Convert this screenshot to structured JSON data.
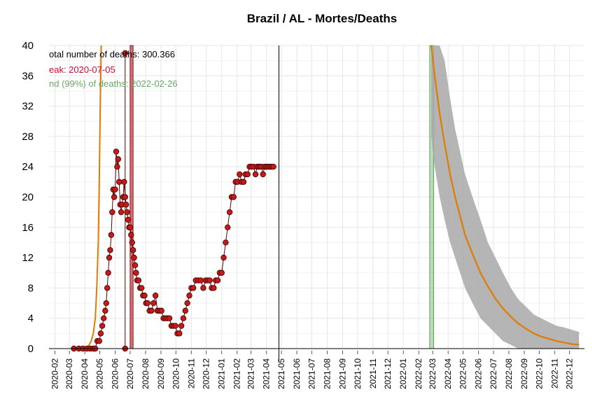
{
  "chart_data": {
    "type": "line",
    "title": "Brazil / AL - Mortes/Deaths",
    "xlabel": "",
    "ylabel": "",
    "ylim": [
      0,
      40
    ],
    "y_ticks": [
      0,
      4,
      8,
      12,
      16,
      20,
      24,
      28,
      32,
      36,
      40
    ],
    "x_range": [
      "2020-01-20",
      "2022-12-31"
    ],
    "x_tick_labels": [
      "2020-02",
      "2020-03",
      "2020-04",
      "2020-05",
      "2020-06",
      "2020-07",
      "2020-08",
      "2020-09",
      "2020-10",
      "2020-11",
      "2020-12",
      "2021-01",
      "2021-02",
      "2021-03",
      "2021-04",
      "2021-05",
      "2021-06",
      "2021-07",
      "2021-08",
      "2021-09",
      "2021-10",
      "2021-11",
      "2021-12",
      "2022-01",
      "2022-02",
      "2022-03",
      "2022-04",
      "2022-05",
      "2022-06",
      "2022-07",
      "2022-08",
      "2022-09",
      "2022-10",
      "2022-11",
      "2022-12"
    ],
    "grid": true,
    "annotations": {
      "total": "otal number of deaths: 300.366",
      "peak": "eak: 2020-07-05",
      "end": "nd (99%) of deaths: 2022-02-26"
    },
    "vertical_line_date": "2021-04-26",
    "peak_band": [
      "2020-07-01",
      "2020-07-07"
    ],
    "end_band": [
      "2022-02-23",
      "2022-03-03"
    ],
    "series": [
      {
        "kind": "observed",
        "dates": [
          "2020-03-10",
          "2020-03-20",
          "2020-03-28",
          "2020-04-05",
          "2020-04-12",
          "2020-04-18",
          "2020-04-22",
          "2020-04-26",
          "2020-04-30",
          "2020-05-03",
          "2020-05-06",
          "2020-05-09",
          "2020-05-12",
          "2020-05-14",
          "2020-05-16",
          "2020-05-18",
          "2020-05-20",
          "2020-05-22",
          "2020-05-24",
          "2020-05-26",
          "2020-05-28",
          "2020-05-30",
          "2020-06-01",
          "2020-06-03",
          "2020-06-05",
          "2020-06-07",
          "2020-06-09",
          "2020-06-11",
          "2020-06-13",
          "2020-06-15",
          "2020-06-17",
          "2020-06-19",
          "2020-06-21",
          "2020-06-23",
          "2020-06-25",
          "2020-06-27",
          "2020-06-29",
          "2020-07-01",
          "2020-07-03",
          "2020-07-05",
          "2020-07-07",
          "2020-07-09",
          "2020-07-11",
          "2020-07-13",
          "2020-07-15",
          "2020-07-18",
          "2020-07-21",
          "2020-07-24",
          "2020-07-27",
          "2020-07-30",
          "2020-08-02",
          "2020-08-05",
          "2020-08-09",
          "2020-08-13",
          "2020-08-17",
          "2020-08-21",
          "2020-08-25",
          "2020-08-29",
          "2020-09-02",
          "2020-09-06",
          "2020-09-10",
          "2020-09-14",
          "2020-09-18",
          "2020-09-22",
          "2020-09-26",
          "2020-09-30",
          "2020-10-04",
          "2020-10-08",
          "2020-10-12",
          "2020-10-16",
          "2020-10-20",
          "2020-10-24",
          "2020-10-28",
          "2020-11-01",
          "2020-11-05",
          "2020-11-10",
          "2020-11-15",
          "2020-11-20",
          "2020-11-25",
          "2020-11-30",
          "2020-12-04",
          "2020-12-08",
          "2020-12-12",
          "2020-12-16",
          "2020-12-20",
          "2020-12-24",
          "2020-12-28",
          "2021-01-01",
          "2021-01-05",
          "2021-01-09",
          "2021-01-13",
          "2021-01-17",
          "2021-01-21",
          "2021-01-25",
          "2021-01-29",
          "2021-02-02",
          "2021-02-06",
          "2021-02-10",
          "2021-02-14",
          "2021-02-18",
          "2021-02-22",
          "2021-02-26",
          "2021-03-02",
          "2021-03-06",
          "2021-03-10",
          "2021-03-13",
          "2021-03-16",
          "2021-03-19",
          "2021-03-22",
          "2021-03-25",
          "2021-03-28",
          "2021-03-31",
          "2021-04-03",
          "2021-04-06",
          "2021-04-09",
          "2021-04-12",
          "2021-04-15"
        ],
        "values": [
          0,
          0,
          0,
          0,
          0,
          0,
          0,
          1,
          1,
          2,
          3,
          4,
          5,
          6,
          8,
          10,
          12,
          13,
          15,
          18,
          21,
          20,
          21,
          26,
          24,
          25,
          22,
          19,
          18,
          19,
          20,
          22,
          20,
          19,
          18,
          17,
          16,
          16,
          15,
          14,
          13,
          12,
          11,
          10,
          9,
          9,
          8,
          8,
          7,
          7,
          6,
          6,
          5,
          5,
          6,
          7,
          5,
          5,
          5,
          4,
          4,
          4,
          4,
          3,
          3,
          3,
          2,
          2,
          3,
          4,
          5,
          6,
          7,
          8,
          8,
          9,
          9,
          9,
          8,
          9,
          9,
          9,
          8,
          8,
          9,
          9,
          10,
          10,
          12,
          14,
          16,
          18,
          20,
          20,
          22,
          22,
          23,
          22,
          22,
          23,
          23,
          24,
          24,
          24,
          23,
          24,
          24,
          24,
          24,
          23,
          24,
          24,
          24,
          24,
          24,
          24,
          24
        ]
      },
      {
        "kind": "fitted-rise",
        "dates": [
          "2020-03-20",
          "2020-04-01",
          "2020-04-08",
          "2020-04-14",
          "2020-04-18",
          "2020-04-22",
          "2020-04-25",
          "2020-04-28",
          "2020-04-30",
          "2020-05-02",
          "2020-05-04"
        ],
        "values": [
          0,
          0,
          0.3,
          1,
          2,
          4,
          8,
          14,
          22,
          32,
          40
        ]
      },
      {
        "kind": "forecast",
        "dates": [
          "2022-02-26",
          "2022-03-05",
          "2022-03-15",
          "2022-03-25",
          "2022-04-05",
          "2022-04-15",
          "2022-04-25",
          "2022-05-05",
          "2022-05-20",
          "2022-06-05",
          "2022-06-20",
          "2022-07-05",
          "2022-07-20",
          "2022-08-05",
          "2022-08-20",
          "2022-09-05",
          "2022-09-20",
          "2022-10-05",
          "2022-10-20",
          "2022-11-05",
          "2022-11-20",
          "2022-12-05",
          "2022-12-20"
        ],
        "values": [
          40,
          36,
          31,
          27,
          23,
          20,
          17.5,
          15,
          12.5,
          10,
          8.2,
          6.6,
          5.3,
          4.2,
          3.3,
          2.6,
          2.0,
          1.6,
          1.3,
          1.0,
          0.8,
          0.6,
          0.5
        ],
        "band_low": [
          28,
          24,
          20,
          17,
          14,
          12,
          10,
          8,
          6,
          4,
          3,
          2,
          1,
          0.5,
          0,
          0,
          0,
          0,
          0,
          0,
          0,
          0,
          0
        ],
        "band_high": [
          40,
          40,
          40,
          38,
          33,
          29,
          26,
          23,
          20,
          17,
          14,
          12,
          10,
          8,
          6.5,
          5.5,
          4.5,
          4,
          3.5,
          3,
          2.8,
          2.5,
          2.2
        ]
      }
    ],
    "colors": {
      "observed_fill": "#c41a1a",
      "observed_line": "#5a0000",
      "fitted": "#e07b00",
      "peak_band": "#c8404a",
      "end_band": "#8cc68c",
      "forecast_band": "#a8a8a8",
      "grid": "#e6e6e6"
    }
  }
}
